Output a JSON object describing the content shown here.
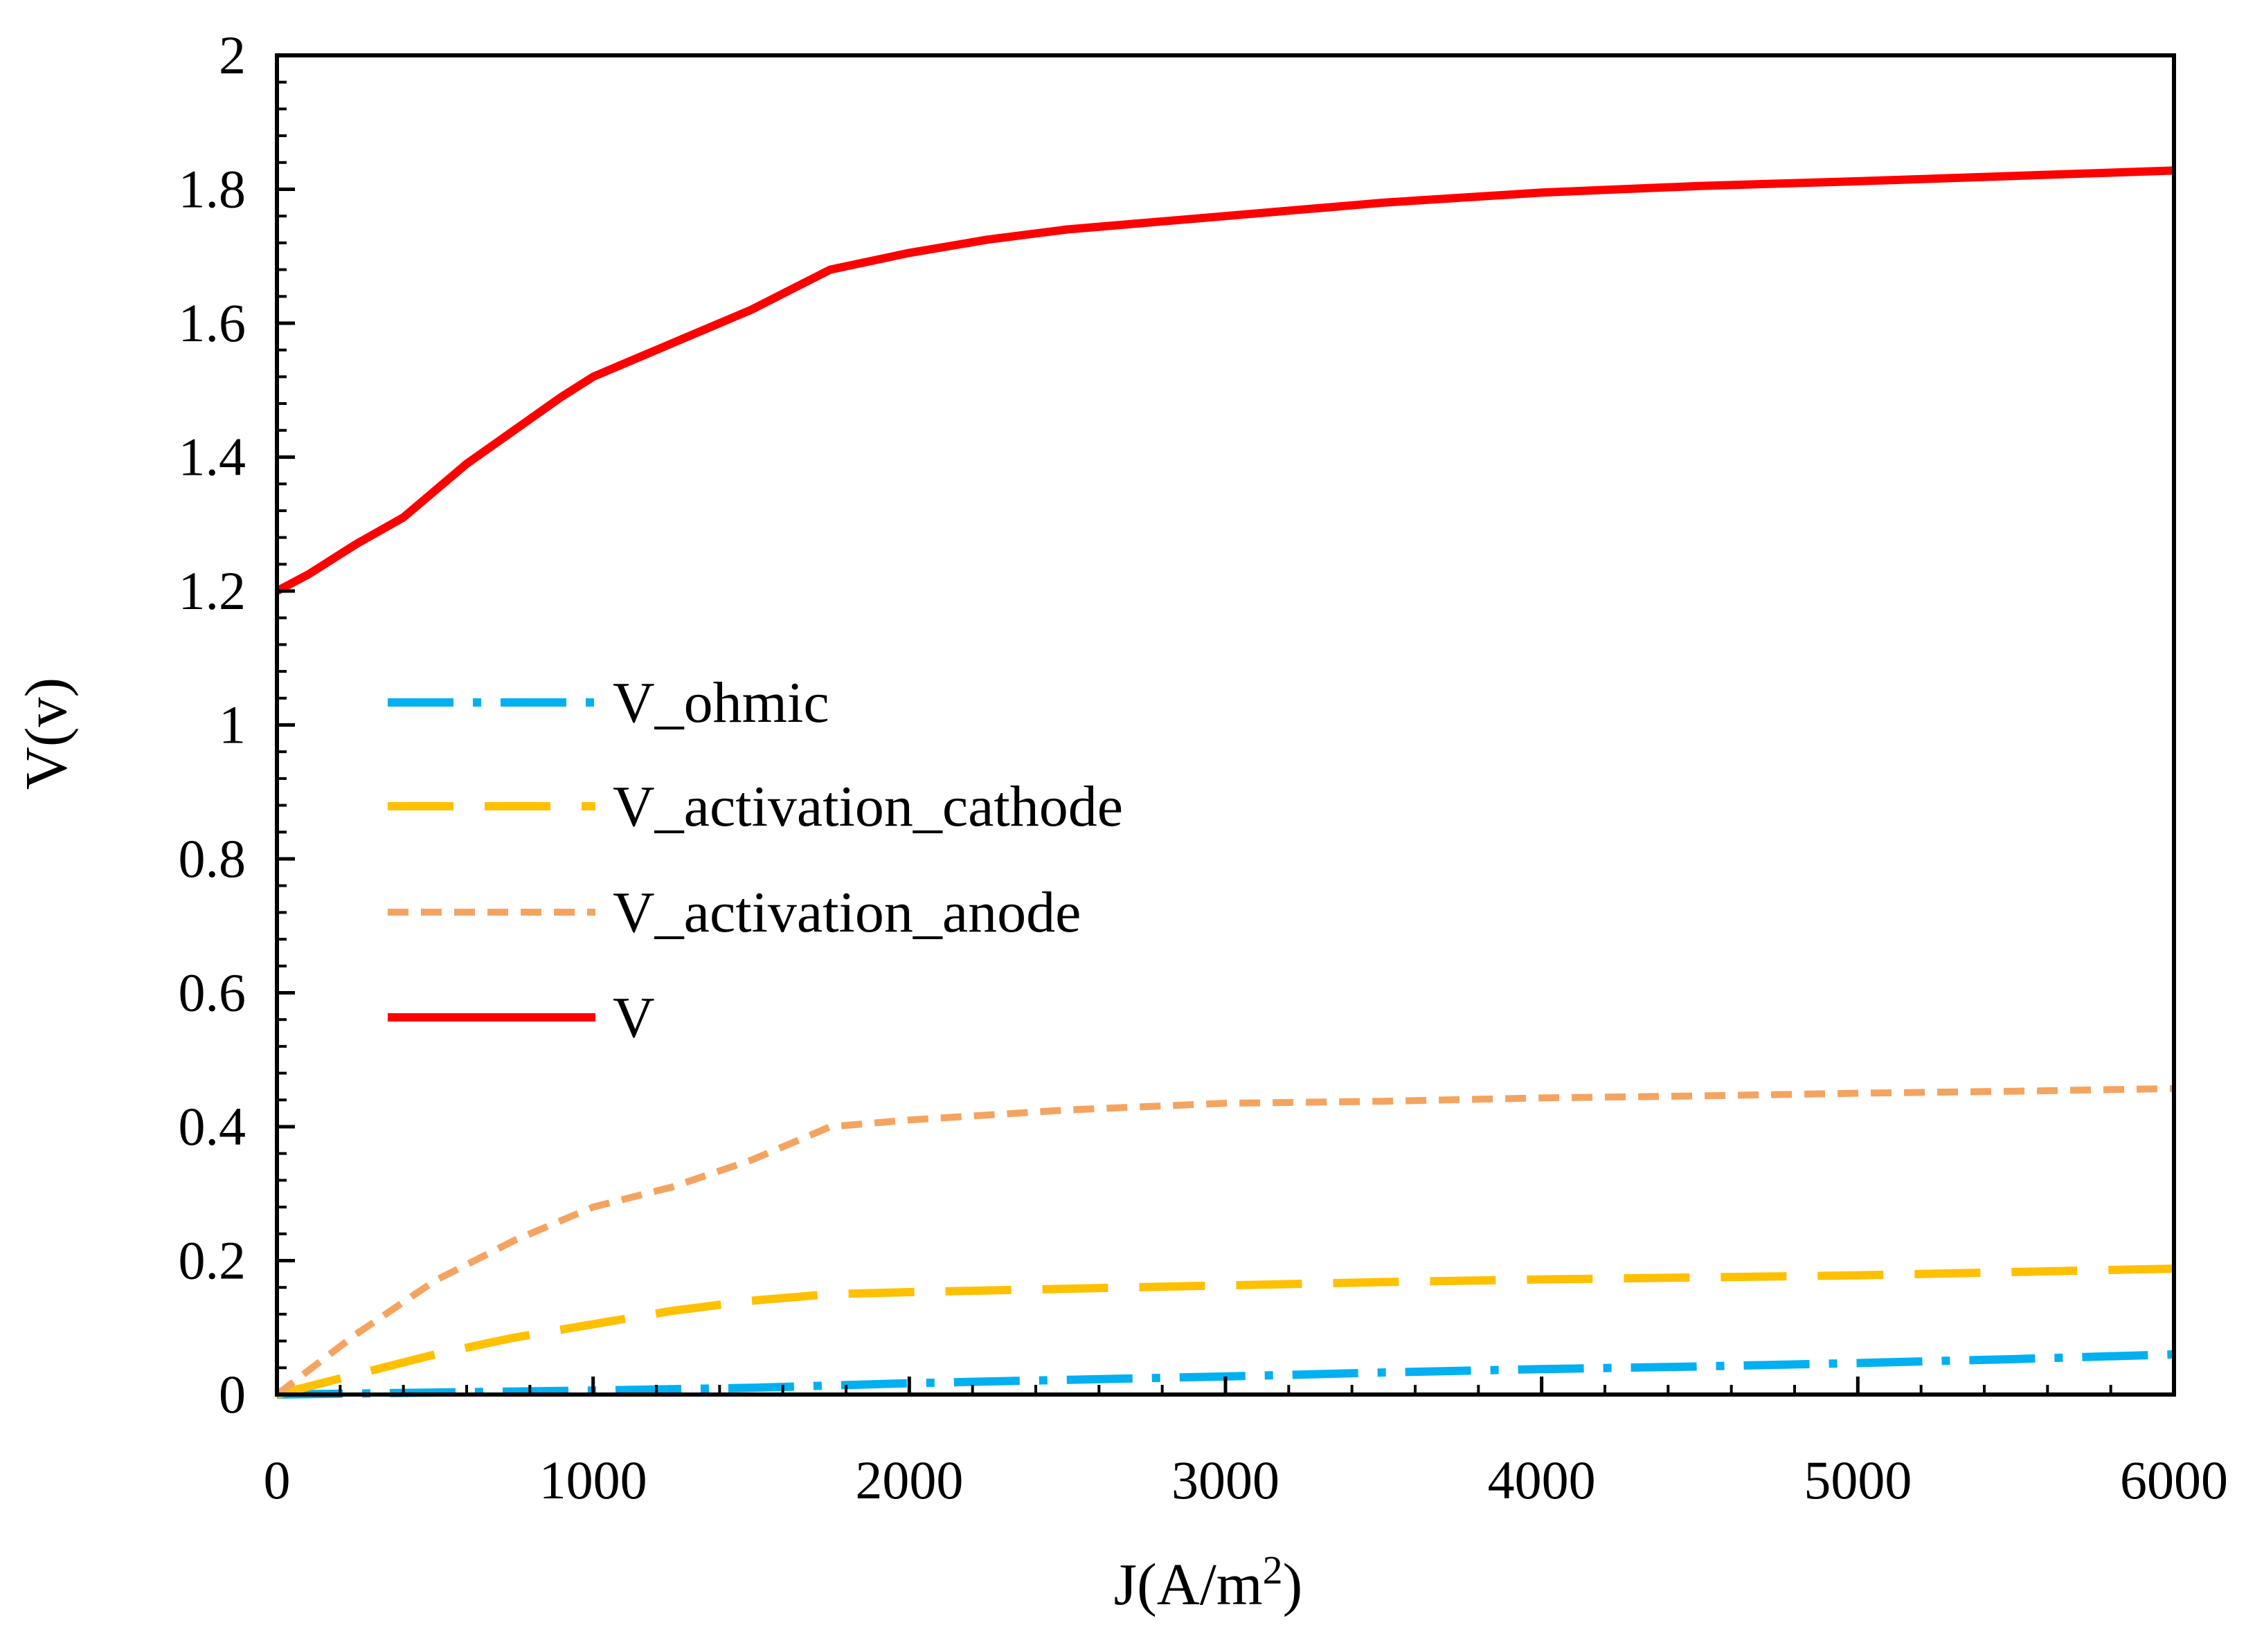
{
  "chart_data": {
    "type": "line",
    "title": "",
    "xlabel": "J(A/m",
    "xlabel_sup": "2",
    "xlabel_suffix": ")",
    "ylabel": "V(v)",
    "xlim": [
      0,
      6000
    ],
    "ylim": [
      0,
      2
    ],
    "x_ticks": [
      0,
      1000,
      2000,
      3000,
      4000,
      5000,
      6000
    ],
    "x_tick_labels": [
      "0",
      "1000",
      "2000",
      "3000",
      "4000",
      "5000",
      "6000"
    ],
    "y_ticks": [
      0,
      0.2,
      0.4,
      0.6,
      0.8,
      1,
      1.2,
      1.4,
      1.6,
      1.8,
      2
    ],
    "y_tick_labels": [
      "0",
      "0.2",
      "0.4",
      "0.6",
      "0.8",
      "1",
      "1.2",
      "1.4",
      "1.6",
      "1.8",
      "2"
    ],
    "grid": false,
    "legend_position": "left-middle",
    "series": [
      {
        "name": "V_ohmic",
        "color": "#00B0F0",
        "style": "dash-dot",
        "x": [
          0,
          500,
          1000,
          1500,
          2000,
          2500,
          3000,
          3500,
          4000,
          4500,
          5000,
          5500,
          6000
        ],
        "y": [
          0,
          0.003,
          0.006,
          0.01,
          0.017,
          0.022,
          0.027,
          0.033,
          0.038,
          0.042,
          0.047,
          0.053,
          0.06
        ]
      },
      {
        "name": "V_activation_cathode",
        "color": "#FFC000",
        "style": "long-dash",
        "x": [
          0,
          250,
          500,
          750,
          1000,
          1250,
          1500,
          1750,
          2000,
          2500,
          3000,
          3500,
          4000,
          4500,
          5000,
          5500,
          6000
        ],
        "y": [
          0,
          0.03,
          0.06,
          0.085,
          0.105,
          0.125,
          0.14,
          0.15,
          0.153,
          0.158,
          0.163,
          0.168,
          0.172,
          0.175,
          0.178,
          0.183,
          0.188
        ]
      },
      {
        "name": "V_activation_anode",
        "color": "#F4A460",
        "style": "short-dash",
        "x": [
          0,
          250,
          500,
          750,
          1000,
          1250,
          1500,
          1750,
          2000,
          2500,
          3000,
          3500,
          4000,
          4500,
          5000,
          5500,
          6000
        ],
        "y": [
          0,
          0.09,
          0.17,
          0.23,
          0.28,
          0.31,
          0.35,
          0.4,
          0.41,
          0.425,
          0.435,
          0.438,
          0.443,
          0.446,
          0.45,
          0.453,
          0.457
        ]
      },
      {
        "name": "V",
        "color": "#FF0000",
        "style": "solid",
        "x": [
          0,
          100,
          250,
          400,
          500,
          600,
          750,
          900,
          1000,
          1250,
          1500,
          1750,
          2000,
          2250,
          2500,
          3000,
          3500,
          4000,
          4500,
          5000,
          5500,
          6000
        ],
        "y": [
          1.2,
          1.225,
          1.27,
          1.31,
          1.35,
          1.39,
          1.44,
          1.49,
          1.52,
          1.57,
          1.62,
          1.68,
          1.705,
          1.725,
          1.74,
          1.76,
          1.78,
          1.795,
          1.805,
          1.812,
          1.82,
          1.828
        ]
      }
    ]
  }
}
